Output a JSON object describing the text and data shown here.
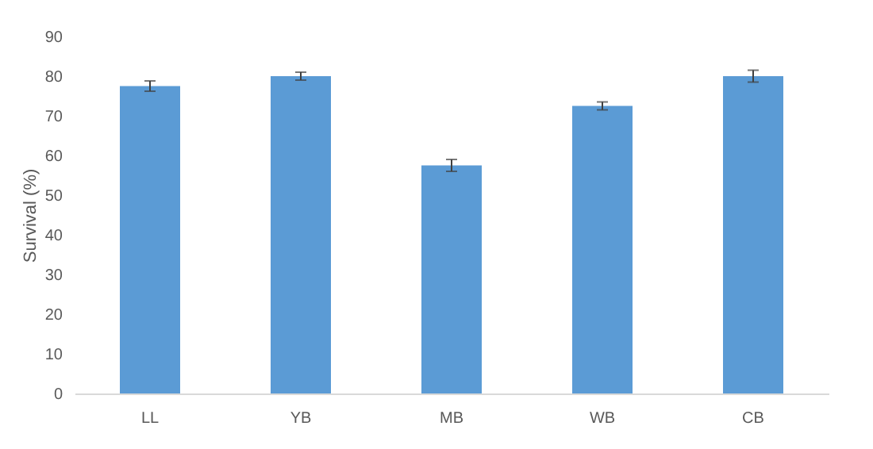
{
  "chart_data": {
    "type": "bar",
    "ylabel": "Survival (%)",
    "categories": [
      "LL",
      "YB",
      "MB",
      "WB",
      "CB"
    ],
    "values": [
      77.5,
      80,
      57.5,
      72.5,
      80
    ],
    "errors": [
      1.3,
      1,
      1.5,
      1,
      1.5
    ],
    "color": "#5b9bd5",
    "ylim": [
      0,
      90
    ],
    "yticks": [
      0,
      10,
      20,
      30,
      40,
      50,
      60,
      70,
      80,
      90
    ],
    "grid": false
  }
}
